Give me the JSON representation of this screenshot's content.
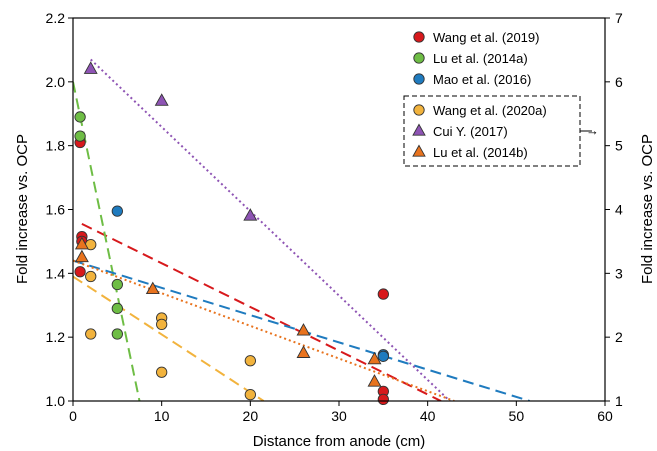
{
  "chart_data": {
    "type": "scatter",
    "xlabel": "Distance from anode (cm)",
    "ylabel_left": "Fold increase vs. OCP",
    "ylabel_right": "Fold increase vs. OCP",
    "xlim": [
      0,
      60
    ],
    "ylim_left": [
      1.0,
      2.2
    ],
    "ylim_right": [
      1,
      7
    ],
    "x_ticks": [
      "0",
      "10",
      "20",
      "30",
      "40",
      "50",
      "60"
    ],
    "y_left_ticks": [
      "1.0",
      "1.2",
      "1.4",
      "1.6",
      "1.8",
      "2.0",
      "2.2"
    ],
    "y_right_ticks": [
      "1",
      "2",
      "3",
      "4",
      "5",
      "6",
      "7"
    ],
    "grid": false,
    "legend_position": "top-right",
    "right_axis_arrow": "→",
    "series": [
      {
        "name": "Wang et al. (2019)",
        "axis": "left",
        "marker": "circle",
        "color": "#d7191c",
        "points": [
          [
            0.8,
            1.81
          ],
          [
            1.0,
            1.515
          ],
          [
            1.0,
            1.5
          ],
          [
            0.8,
            1.405
          ],
          [
            35,
            1.335
          ],
          [
            35,
            1.03
          ],
          [
            35,
            1.005
          ]
        ],
        "trendline": {
          "x": [
            1,
            41.5
          ],
          "y": [
            1.555,
            1.0
          ],
          "dash": "long"
        }
      },
      {
        "name": "Lu et al. (2014a)",
        "axis": "left",
        "marker": "circle",
        "color": "#6ebd45",
        "points": [
          [
            0.8,
            1.89
          ],
          [
            0.8,
            1.83
          ],
          [
            5,
            1.365
          ],
          [
            5,
            1.29
          ],
          [
            5,
            1.21
          ]
        ],
        "trendline": {
          "x": [
            0,
            7.5
          ],
          "y": [
            2.0,
            1.0
          ],
          "dash": "long"
        }
      },
      {
        "name": "Mao et al. (2016)",
        "axis": "left",
        "marker": "circle",
        "color": "#1f7bbf",
        "points": [
          [
            5,
            1.595
          ],
          [
            35,
            1.145
          ],
          [
            35,
            1.14
          ]
        ],
        "trendline": {
          "x": [
            0,
            51.5
          ],
          "y": [
            1.44,
            1.0
          ],
          "dash": "long"
        }
      },
      {
        "name": "Wang et al. (2020a)",
        "axis": "right",
        "marker": "circle",
        "color": "#f2b33d",
        "points": [
          [
            2,
            3.45
          ],
          [
            2,
            2.95
          ],
          [
            2,
            2.05
          ],
          [
            10,
            2.3
          ],
          [
            10,
            2.2
          ],
          [
            10,
            1.45
          ],
          [
            20,
            1.63
          ],
          [
            20,
            1.1
          ]
        ],
        "trendline": {
          "x": [
            0,
            21.5
          ],
          "y": [
            2.95,
            1.0
          ],
          "dash": "long"
        }
      },
      {
        "name": "Cui Y. (2017)",
        "axis": "right",
        "marker": "triangle",
        "color": "#8e54b4",
        "points": [
          [
            2,
            6.2
          ],
          [
            10,
            5.7
          ],
          [
            20,
            3.9
          ]
        ],
        "trendline": {
          "x": [
            2,
            42.5
          ],
          "y": [
            6.35,
            1.0
          ],
          "dash": "dotted"
        }
      },
      {
        "name": "Lu et al. (2014b)",
        "axis": "right",
        "marker": "triangle",
        "color": "#e8731e",
        "points": [
          [
            1,
            3.45
          ],
          [
            1,
            3.25
          ],
          [
            9,
            2.75
          ],
          [
            26,
            2.1
          ],
          [
            26,
            1.75
          ],
          [
            34,
            1.65
          ],
          [
            34,
            1.3
          ]
        ],
        "trendline": {
          "x": [
            0,
            43
          ],
          "y": [
            3.2,
            1.0
          ],
          "dash": "dotted"
        }
      }
    ]
  }
}
